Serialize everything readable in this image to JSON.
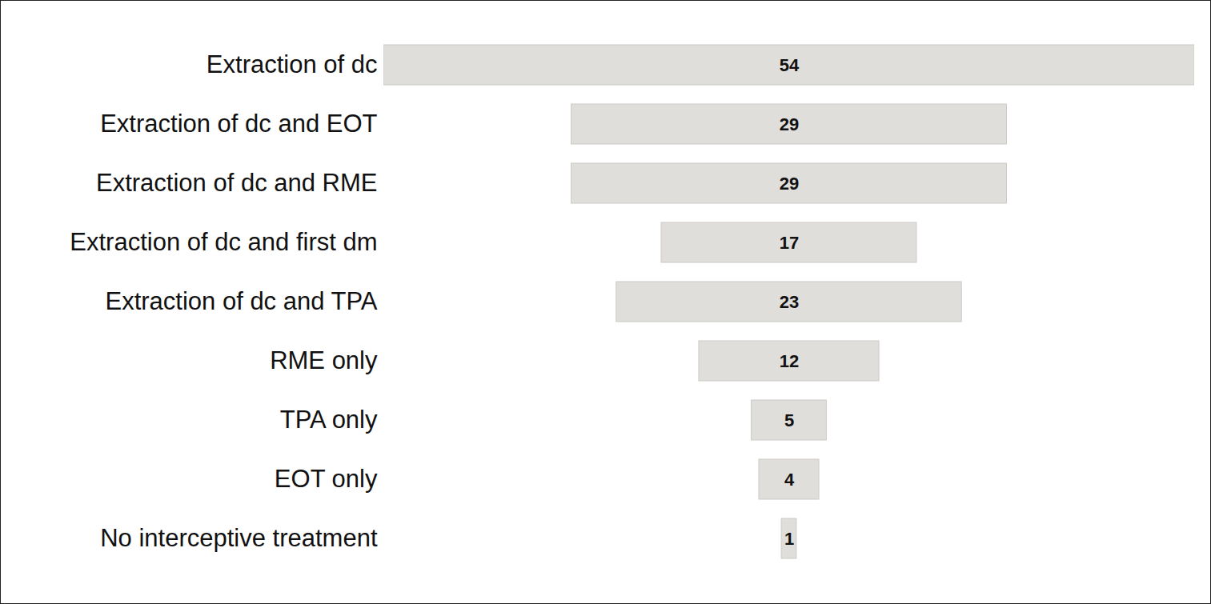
{
  "chart_data": {
    "type": "funnel",
    "orientation": "horizontal",
    "categories": [
      "Extraction of dc",
      "Extraction of dc and EOT",
      "Extraction of dc and RME",
      "Extraction of dc and first dm",
      "Extraction of dc and TPA",
      "RME only",
      "TPA only",
      "EOT only",
      "No interceptive treatment"
    ],
    "values": [
      54,
      29,
      29,
      17,
      23,
      12,
      5,
      4,
      1
    ],
    "color": "#e0dedb",
    "data_labels": true,
    "tick_labels": "y",
    "grid": false
  }
}
